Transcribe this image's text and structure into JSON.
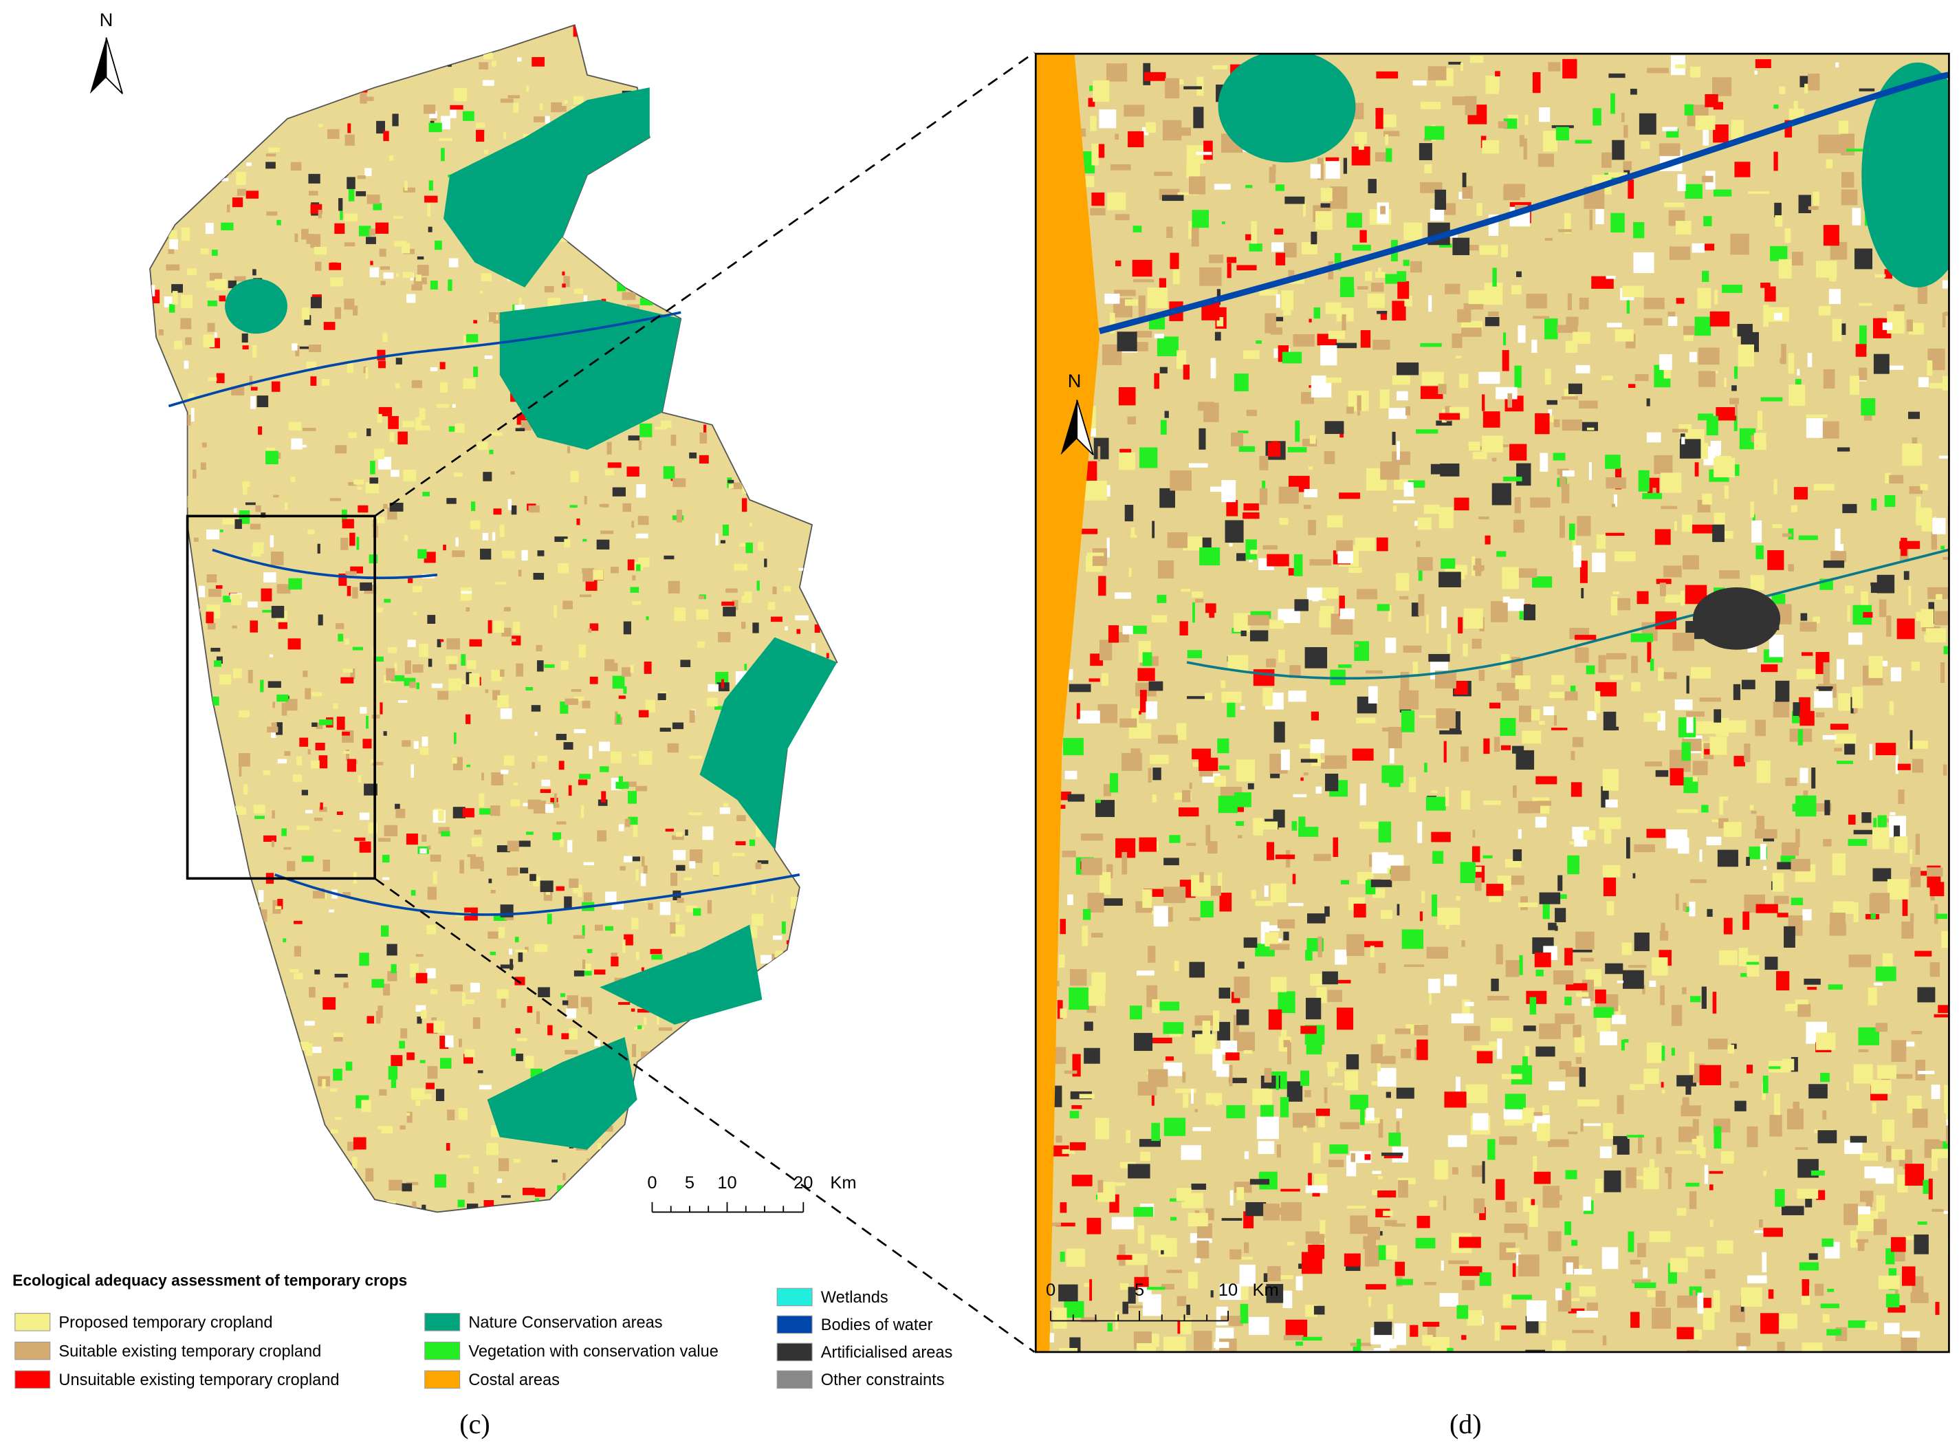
{
  "maps": {
    "overview": {
      "north": "N",
      "scale_labels": [
        "0",
        "5",
        "10",
        "20",
        "Km"
      ]
    },
    "detail": {
      "north": "N",
      "scale_labels": [
        "0",
        "5",
        "10",
        "Km"
      ]
    }
  },
  "legend": {
    "title": "Ecological adequacy assessment of temporary crops",
    "items": [
      {
        "label": "Proposed temporary cropland",
        "color": "#f5ef8a"
      },
      {
        "label": "Suitable existing temporary cropland",
        "color": "#d4ab70"
      },
      {
        "label": "Unsuitable existing temporary cropland",
        "color": "#ff0000"
      },
      {
        "label": "Nature Conservation areas",
        "color": "#00a47c"
      },
      {
        "label": "Vegetation with conservation value",
        "color": "#22ee22"
      },
      {
        "label": "Costal areas",
        "color": "#ffa500"
      },
      {
        "label": "Wetlands",
        "color": "#22eedd"
      },
      {
        "label": "Bodies of water",
        "color": "#0047ab"
      },
      {
        "label": "Artificialised areas",
        "color": "#333333"
      },
      {
        "label": "Other constraints",
        "color": "#888888"
      }
    ]
  },
  "captions": [
    "(c)",
    "(d)"
  ]
}
